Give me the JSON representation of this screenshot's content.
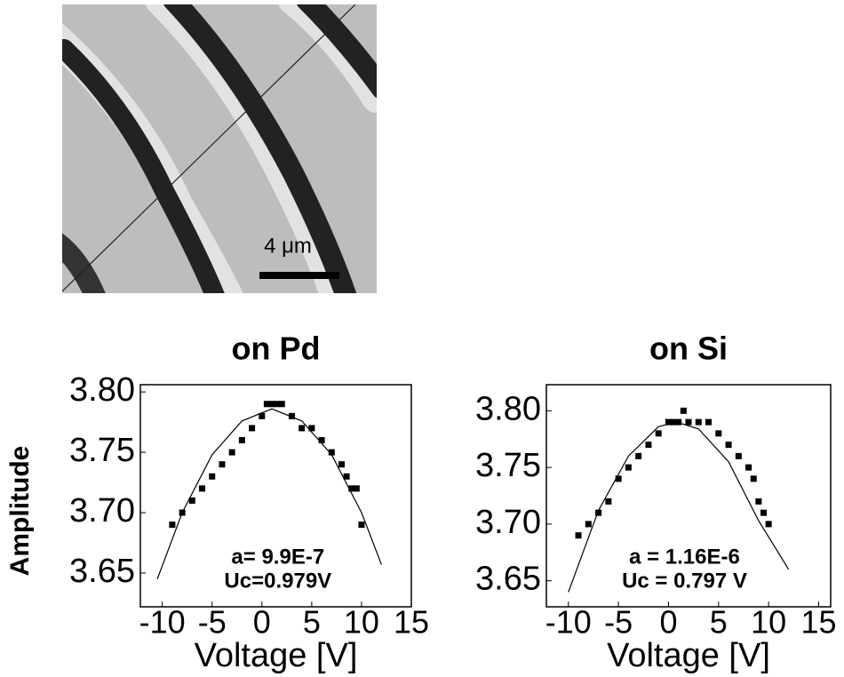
{
  "figure": {
    "scale_label": "4 μm"
  },
  "chart_data": [
    {
      "type": "scatter",
      "title": "on Pd",
      "x_label": "Voltage [V]",
      "y_label": "Amplitude",
      "annotations": [
        "a= 9.9E-7",
        "Uc=0.979V"
      ],
      "xlim": [
        -12.2,
        15
      ],
      "ylim": [
        3.622,
        3.806
      ],
      "xticks": [
        -10,
        -5,
        0,
        5,
        10,
        15
      ],
      "yticks": [
        {
          "value": 3.8,
          "label": "3.80"
        },
        {
          "value": 3.75,
          "label": "3.75"
        },
        {
          "value": 3.7,
          "label": "3.70"
        },
        {
          "value": 3.65,
          "label": "3.65"
        }
      ],
      "series": [
        {
          "type": "scatter",
          "color": "#000000",
          "x": [
            -9,
            -8,
            -7,
            -6,
            -5,
            -4,
            -3,
            -2,
            -1,
            0,
            0.5,
            1,
            1.5,
            2,
            3,
            4,
            5,
            6,
            7,
            8,
            8.5,
            9,
            9.5,
            10
          ],
          "values": [
            3.69,
            3.7,
            3.71,
            3.72,
            3.73,
            3.74,
            3.75,
            3.76,
            3.77,
            3.78,
            3.79,
            3.79,
            3.79,
            3.79,
            3.78,
            3.77,
            3.77,
            3.76,
            3.75,
            3.74,
            3.73,
            3.72,
            3.72,
            3.69
          ]
        },
        {
          "type": "line",
          "color": "#000000",
          "x": [
            -10.5,
            -8,
            -5,
            -2,
            1,
            4,
            7,
            10,
            12
          ],
          "values": [
            3.645,
            3.7,
            3.748,
            3.776,
            3.786,
            3.776,
            3.748,
            3.7,
            3.657
          ]
        }
      ]
    },
    {
      "type": "scatter",
      "title": "on Si",
      "x_label": "Voltage [V]",
      "annotations": [
        "a = 1.16E-6",
        "Uc = 0.797 V"
      ],
      "xlim": [
        -12.2,
        16.2
      ],
      "ylim": [
        3.627,
        3.823
      ],
      "xticks": [
        -10,
        -5,
        0,
        5,
        10,
        15
      ],
      "yticks": [
        {
          "value": 3.8,
          "label": "3.80"
        },
        {
          "value": 3.75,
          "label": "3.75"
        },
        {
          "value": 3.7,
          "label": "3.70"
        },
        {
          "value": 3.65,
          "label": "3.65"
        }
      ],
      "series": [
        {
          "type": "scatter",
          "color": "#000000",
          "x": [
            -9,
            -8,
            -7,
            -6,
            -5,
            -4,
            -3,
            -2,
            -1,
            0,
            0.5,
            1,
            1.5,
            2,
            3,
            4,
            5,
            6,
            7,
            8,
            8.5,
            9,
            9.5,
            10
          ],
          "values": [
            3.69,
            3.7,
            3.71,
            3.72,
            3.74,
            3.75,
            3.76,
            3.77,
            3.78,
            3.79,
            3.79,
            3.79,
            3.8,
            3.79,
            3.79,
            3.79,
            3.78,
            3.77,
            3.76,
            3.75,
            3.74,
            3.72,
            3.71,
            3.7
          ]
        },
        {
          "type": "line",
          "color": "#000000",
          "x": [
            -10,
            -7,
            -4,
            -1,
            0.8,
            3,
            6,
            9,
            12
          ],
          "values": [
            3.64,
            3.712,
            3.76,
            3.786,
            3.79,
            3.784,
            3.755,
            3.703,
            3.66
          ]
        }
      ]
    }
  ]
}
